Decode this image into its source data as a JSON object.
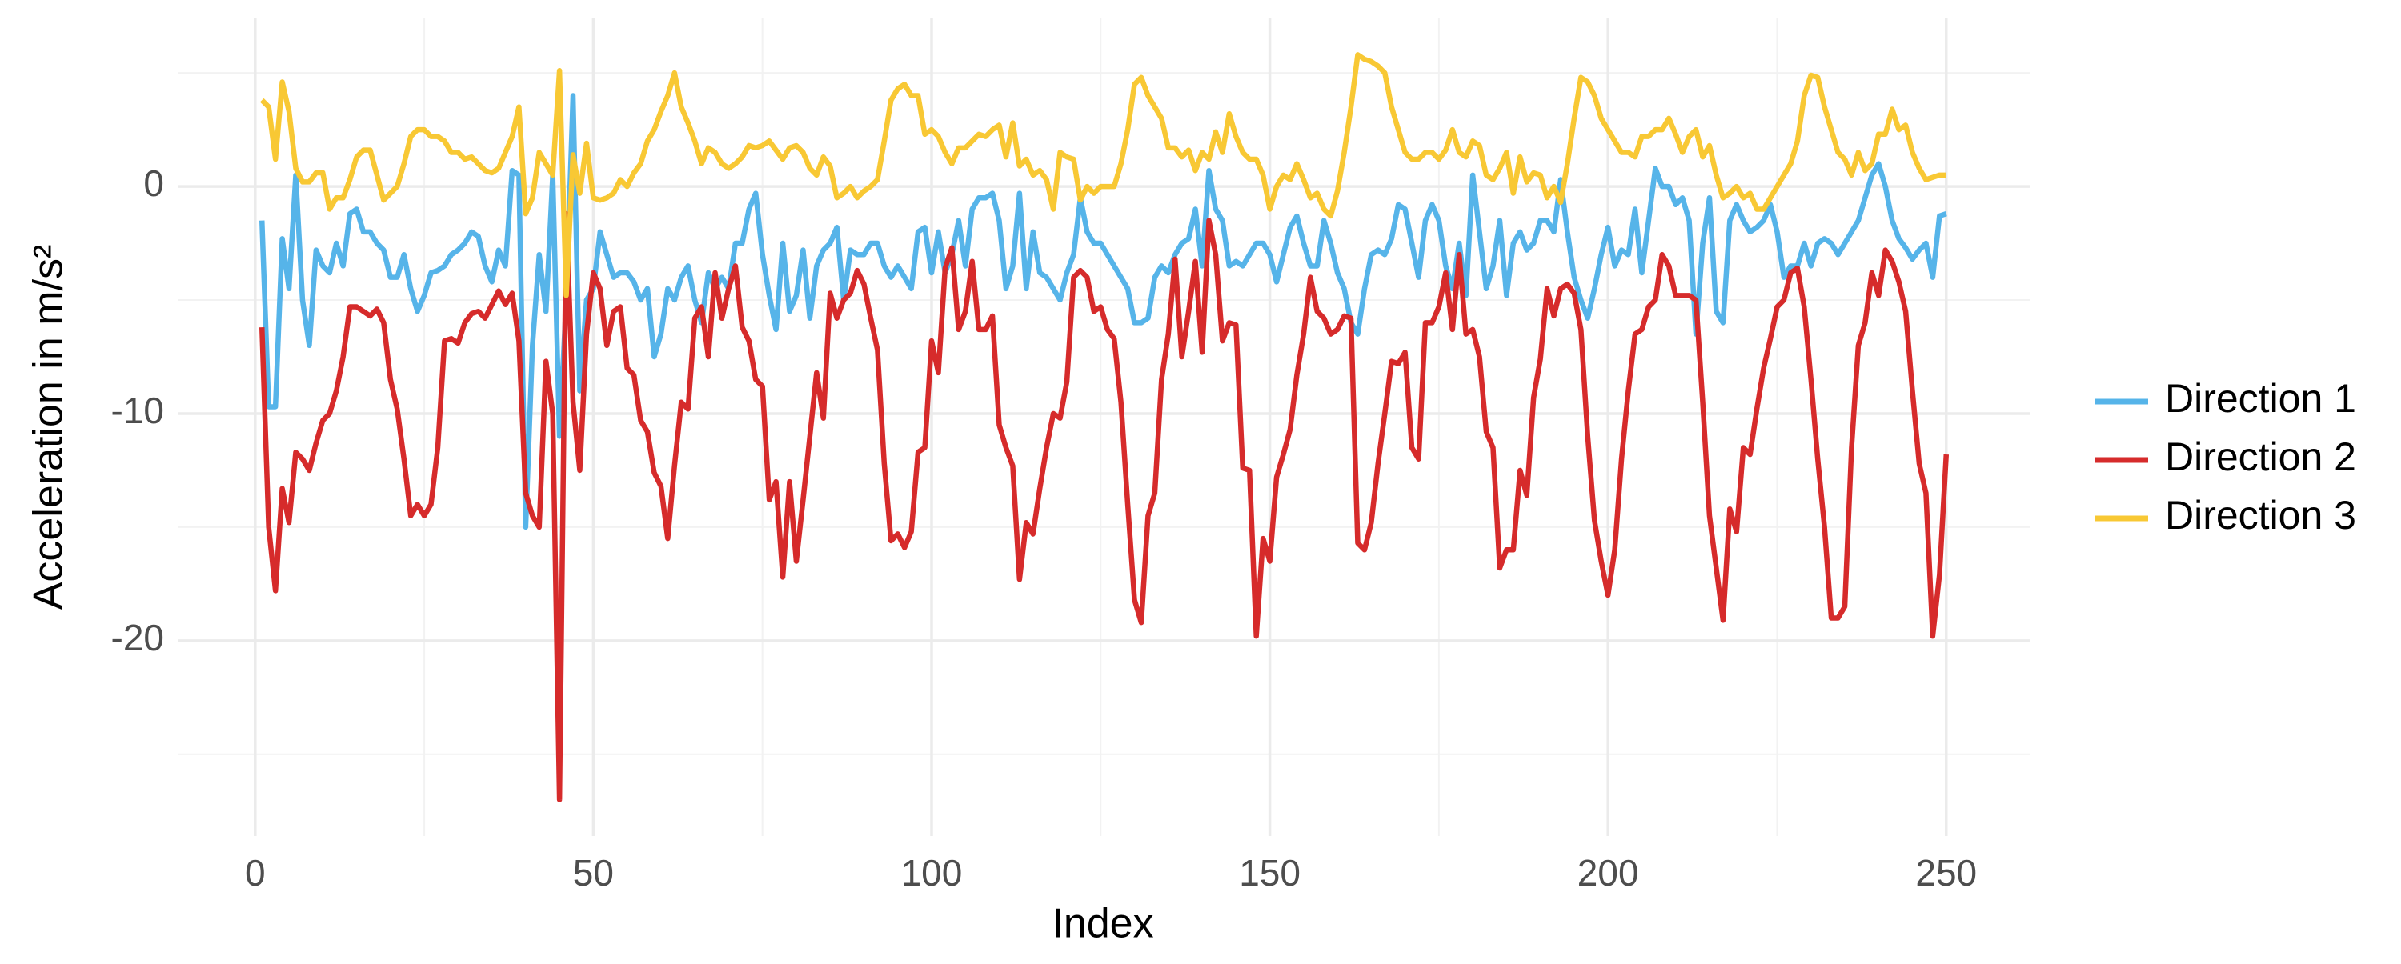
{
  "chart_data": {
    "type": "line",
    "xlabel": "Index",
    "ylabel": "Acceleration in m/s²",
    "xlim": [
      -11.45,
      262.45
    ],
    "ylim": [
      -28.6,
      7.4
    ],
    "xticks": [
      0,
      50,
      100,
      150,
      200,
      250
    ],
    "yticks": [
      -20,
      -10,
      0
    ],
    "xticks_minor": [
      25,
      75,
      125,
      175,
      225
    ],
    "yticks_minor": [
      -25,
      -15,
      -5,
      5
    ],
    "grid": true,
    "legend": "right",
    "x": [
      1,
      2,
      3,
      4,
      5,
      6,
      7,
      8,
      9,
      10,
      11,
      12,
      13,
      14,
      15,
      16,
      17,
      18,
      19,
      20,
      21,
      22,
      23,
      24,
      25,
      26,
      27,
      28,
      29,
      30,
      31,
      32,
      33,
      34,
      35,
      36,
      37,
      38,
      39,
      40,
      41,
      42,
      43,
      44,
      45,
      46,
      47,
      48,
      49,
      50,
      51,
      52,
      53,
      54,
      55,
      56,
      57,
      58,
      59,
      60,
      61,
      62,
      63,
      64,
      65,
      66,
      67,
      68,
      69,
      70,
      71,
      72,
      73,
      74,
      75,
      76,
      77,
      78,
      79,
      80,
      81,
      82,
      83,
      84,
      85,
      86,
      87,
      88,
      89,
      90,
      91,
      92,
      93,
      94,
      95,
      96,
      97,
      98,
      99,
      100,
      101,
      102,
      103,
      104,
      105,
      106,
      107,
      108,
      109,
      110,
      111,
      112,
      113,
      114,
      115,
      116,
      117,
      118,
      119,
      120,
      121,
      122,
      123,
      124,
      125,
      126,
      127,
      128,
      129,
      130,
      131,
      132,
      133,
      134,
      135,
      136,
      137,
      138,
      139,
      140,
      141,
      142,
      143,
      144,
      145,
      146,
      147,
      148,
      149,
      150,
      151,
      152,
      153,
      154,
      155,
      156,
      157,
      158,
      159,
      160,
      161,
      162,
      163,
      164,
      165,
      166,
      167,
      168,
      169,
      170,
      171,
      172,
      173,
      174,
      175,
      176,
      177,
      178,
      179,
      180,
      181,
      182,
      183,
      184,
      185,
      186,
      187,
      188,
      189,
      190,
      191,
      192,
      193,
      194,
      195,
      196,
      197,
      198,
      199,
      200,
      201,
      202,
      203,
      204,
      205,
      206,
      207,
      208,
      209,
      210,
      211,
      212,
      213,
      214,
      215,
      216,
      217,
      218,
      219,
      220,
      221,
      222,
      223,
      224,
      225,
      226,
      227,
      228,
      229,
      230,
      231,
      232,
      233,
      234,
      235,
      236,
      237,
      238,
      239,
      240,
      241,
      242,
      243,
      244,
      245,
      246,
      247,
      248,
      249,
      250
    ],
    "series": [
      {
        "name": "Direction 1",
        "color": "#56b4e9",
        "values": [
          -1.5,
          -9.7,
          -9.7,
          -2.3,
          -4.5,
          0.5,
          -5,
          -7,
          -2.8,
          -3.5,
          -3.8,
          -2.5,
          -3.5,
          -1.2,
          -1,
          -2,
          -2,
          -2.5,
          -2.8,
          -4,
          -4,
          -3,
          -4.5,
          -5.5,
          -4.8,
          -3.8,
          -3.7,
          -3.5,
          -3,
          -2.8,
          -2.5,
          -2,
          -2.2,
          -3.5,
          -4.2,
          -2.8,
          -3.5,
          0.7,
          0.5,
          -15,
          -7,
          -3,
          -5.5,
          0.5,
          -11,
          -5,
          4,
          -9,
          -5,
          -4.5,
          -2,
          -3,
          -4,
          -3.8,
          -3.8,
          -4.2,
          -5,
          -4.5,
          -7.5,
          -6.5,
          -4.5,
          -5,
          -4,
          -3.5,
          -5,
          -6,
          -3.8,
          -4.5,
          -4,
          -4.5,
          -2.5,
          -2.5,
          -1,
          -0.3,
          -3,
          -4.8,
          -6.3,
          -2.5,
          -5.5,
          -4.8,
          -2.8,
          -5.8,
          -3.5,
          -2.8,
          -2.5,
          -1.8,
          -5,
          -2.8,
          -3,
          -3,
          -2.5,
          -2.5,
          -3.5,
          -4,
          -3.5,
          -4,
          -4.5,
          -2,
          -1.8,
          -3.8,
          -2,
          -3.8,
          -3,
          -1.5,
          -3.5,
          -1,
          -0.5,
          -0.5,
          -0.3,
          -1.5,
          -4.5,
          -3.5,
          -0.3,
          -4.5,
          -2,
          -3.8,
          -4,
          -4.5,
          -5,
          -3.8,
          -3,
          -0.5,
          -2,
          -2.5,
          -2.5,
          -3,
          -3.5,
          -4,
          -4.5,
          -6,
          -6,
          -5.8,
          -4,
          -3.5,
          -3.8,
          -3,
          -2.5,
          -2.3,
          -1,
          -3.5,
          0.7,
          -1,
          -1.5,
          -3.5,
          -3.3,
          -3.5,
          -3,
          -2.5,
          -2.5,
          -3,
          -4.2,
          -3,
          -1.8,
          -1.3,
          -2.5,
          -3.5,
          -3.5,
          -1.5,
          -2.5,
          -3.8,
          -4.5,
          -6,
          -6.5,
          -4.5,
          -3,
          -2.8,
          -3,
          -2.3,
          -0.8,
          -1,
          -2.5,
          -4,
          -1.5,
          -0.8,
          -1.5,
          -3.5,
          -4.5,
          -2.5,
          -4.8,
          0.5,
          -2,
          -4.5,
          -3.5,
          -1.5,
          -4.8,
          -2.5,
          -2,
          -2.8,
          -2.5,
          -1.5,
          -1.5,
          -2,
          0.3,
          -2,
          -4,
          -5,
          -5.8,
          -4.5,
          -3,
          -1.8,
          -3.5,
          -2.8,
          -3,
          -1,
          -3.8,
          -1.5,
          0.8,
          0,
          0,
          -0.8,
          -0.5,
          -1.5,
          -6.5,
          -2.5,
          -0.5,
          -5.5,
          -6,
          -1.5,
          -0.8,
          -1.5,
          -2,
          -1.8,
          -1.5,
          -0.8,
          -2,
          -4,
          -3.5,
          -3.5,
          -2.5,
          -3.5,
          -2.5,
          -2.3,
          -2.5,
          -3,
          -2.5,
          -2,
          -1.5,
          -0.5,
          0.5,
          1,
          0,
          -1.5,
          -2.3,
          -2.7,
          -3.2,
          -2.8,
          -2.5,
          -4,
          -1.3,
          -1.2
        ]
      },
      {
        "name": "Direction 2",
        "color": "#d62b2b",
        "values": [
          -6.2,
          -15,
          -17.8,
          -13.3,
          -14.8,
          -11.7,
          -12,
          -12.5,
          -11.3,
          -10.3,
          -10,
          -9,
          -7.5,
          -5.3,
          -5.3,
          -5.5,
          -5.7,
          -5.4,
          -6,
          -8.5,
          -9.8,
          -12,
          -14.5,
          -14,
          -14.5,
          -14,
          -11.5,
          -6.8,
          -6.7,
          -6.9,
          -6,
          -5.6,
          -5.5,
          -5.8,
          -5.2,
          -4.6,
          -5.2,
          -4.7,
          -6.8,
          -13.5,
          -14.5,
          -15,
          -7.7,
          -10,
          -27,
          -1.2,
          -9.5,
          -12.5,
          -6.5,
          -3.8,
          -4.5,
          -7,
          -5.5,
          -5.3,
          -8,
          -8.3,
          -10.3,
          -10.8,
          -12.6,
          -13.2,
          -15.5,
          -12.3,
          -9.5,
          -9.8,
          -5.8,
          -5.3,
          -7.5,
          -3.8,
          -5.8,
          -4.5,
          -3.5,
          -6.2,
          -6.8,
          -8.5,
          -8.8,
          -13.8,
          -13,
          -17.2,
          -13,
          -16.5,
          -13.8,
          -11,
          -8.2,
          -10.2,
          -4.7,
          -5.8,
          -5,
          -4.7,
          -3.7,
          -4.3,
          -5.8,
          -7.2,
          -12.2,
          -15.6,
          -15.3,
          -15.9,
          -15.2,
          -11.7,
          -11.5,
          -6.8,
          -8.2,
          -3.6,
          -2.7,
          -6.3,
          -5.5,
          -3.3,
          -6.3,
          -6.3,
          -5.7,
          -10.5,
          -11.5,
          -12.3,
          -17.3,
          -14.8,
          -15.3,
          -13.3,
          -11.5,
          -10,
          -10.2,
          -8.6,
          -4,
          -3.7,
          -4,
          -5.5,
          -5.3,
          -6.3,
          -6.7,
          -9.5,
          -14,
          -18.2,
          -19.2,
          -14.5,
          -13.5,
          -8.5,
          -6.5,
          -3.2,
          -7.5,
          -5.5,
          -3.3,
          -7.3,
          -1.5,
          -3,
          -6.8,
          -6,
          -6.1,
          -12.4,
          -12.5,
          -19.8,
          -15.5,
          -16.5,
          -12.8,
          -11.8,
          -10.7,
          -8.3,
          -6.5,
          -4,
          -5.5,
          -5.8,
          -6.5,
          -6.3,
          -5.7,
          -5.8,
          -15.7,
          -16,
          -14.8,
          -12.2,
          -10,
          -7.7,
          -7.8,
          -7.3,
          -11.5,
          -12,
          -6,
          -6,
          -5.3,
          -3.8,
          -6.3,
          -3,
          -6.5,
          -6.3,
          -7.5,
          -10.8,
          -11.5,
          -16.8,
          -16,
          -16,
          -12.5,
          -13.6,
          -9.3,
          -7.6,
          -4.5,
          -5.7,
          -4.5,
          -4.3,
          -4.7,
          -6.3,
          -11,
          -14.7,
          -16.5,
          -18,
          -16,
          -12,
          -9,
          -6.5,
          -6.3,
          -5.3,
          -5,
          -3,
          -3.5,
          -4.8,
          -4.8,
          -4.8,
          -5,
          -9.5,
          -14.5,
          -16.8,
          -19.1,
          -14.2,
          -15.2,
          -11.5,
          -11.8,
          -9.8,
          -8,
          -6.7,
          -5.3,
          -5,
          -3.8,
          -3.6,
          -5.3,
          -8.5,
          -12,
          -15,
          -19,
          -19,
          -18.5,
          -11.5,
          -7,
          -6,
          -3.8,
          -4.8,
          -2.8,
          -3.3,
          -4.2,
          -5.5,
          -9,
          -12.2,
          -13.5,
          -19.8,
          -17.1,
          -11.8
        ]
      },
      {
        "name": "Direction 3",
        "color": "#f8c834",
        "values": [
          3.8,
          3.5,
          1.2,
          4.6,
          3.3,
          0.8,
          0.2,
          0.2,
          0.6,
          0.6,
          -1,
          -0.5,
          -0.5,
          0.3,
          1.3,
          1.6,
          1.6,
          0.5,
          -0.6,
          -0.3,
          0,
          1,
          2.2,
          2.5,
          2.5,
          2.2,
          2.2,
          2,
          1.5,
          1.5,
          1.2,
          1.3,
          1,
          0.7,
          0.6,
          0.8,
          1.5,
          2.2,
          3.5,
          -1.2,
          -0.5,
          1.5,
          1,
          0.5,
          5.1,
          -4.8,
          1.4,
          -0.3,
          1.9,
          -0.5,
          -0.6,
          -0.5,
          -0.3,
          0.3,
          0,
          0.6,
          1,
          2,
          2.5,
          3.3,
          4,
          5,
          3.5,
          2.8,
          2,
          1,
          1.7,
          1.5,
          1,
          0.8,
          1,
          1.3,
          1.8,
          1.7,
          1.8,
          2,
          1.6,
          1.2,
          1.7,
          1.8,
          1.5,
          0.8,
          0.5,
          1.3,
          0.9,
          -0.5,
          -0.3,
          0,
          -0.5,
          -0.2,
          0,
          0.3,
          2,
          3.8,
          4.3,
          4.5,
          4,
          4,
          2.3,
          2.5,
          2.2,
          1.5,
          1,
          1.7,
          1.7,
          2,
          2.3,
          2.2,
          2.5,
          2.7,
          1.3,
          2.8,
          0.9,
          1.2,
          0.5,
          0.7,
          0.3,
          -1,
          1.5,
          1.3,
          1.2,
          -0.6,
          0,
          -0.3,
          0,
          0,
          0,
          1,
          2.5,
          4.5,
          4.8,
          4,
          3.5,
          3,
          1.7,
          1.7,
          1.3,
          1.6,
          0.7,
          1.5,
          1.2,
          2.4,
          1.5,
          3.2,
          2.2,
          1.5,
          1.2,
          1.2,
          0.5,
          -1,
          0,
          0.5,
          0.3,
          1,
          0.3,
          -0.5,
          -0.3,
          -1,
          -1.3,
          -0.2,
          1.5,
          3.5,
          5.8,
          5.6,
          5.5,
          5.3,
          5,
          3.5,
          2.5,
          1.5,
          1.2,
          1.2,
          1.5,
          1.5,
          1.2,
          1.6,
          2.5,
          1.5,
          1.3,
          2,
          1.8,
          0.5,
          0.3,
          0.8,
          1.5,
          -0.3,
          1.3,
          0.2,
          0.6,
          0.5,
          -0.5,
          0,
          -0.7,
          1,
          3,
          4.8,
          4.6,
          4,
          3,
          2.5,
          2,
          1.5,
          1.5,
          1.3,
          2.2,
          2.2,
          2.5,
          2.5,
          3,
          2.3,
          1.5,
          2.2,
          2.5,
          1.3,
          1.8,
          0.5,
          -0.5,
          -0.3,
          0,
          -0.5,
          -0.3,
          -1,
          -1,
          -0.5,
          0,
          0.5,
          1,
          2,
          4,
          4.9,
          4.8,
          3.5,
          2.5,
          1.5,
          1.2,
          0.5,
          1.5,
          0.7,
          1,
          2.3,
          2.3,
          3.4,
          2.5,
          2.7,
          1.5,
          0.8,
          0.3,
          0.4,
          0.5,
          0.5
        ]
      }
    ]
  }
}
